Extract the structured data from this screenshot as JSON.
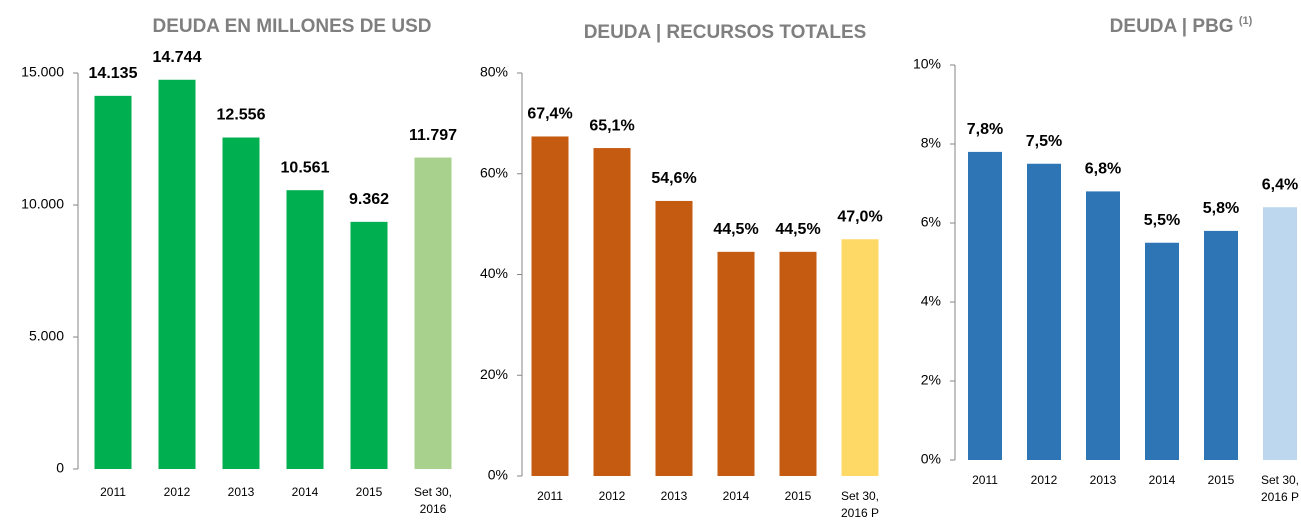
{
  "chart_data": [
    {
      "type": "bar",
      "title": "DEUDA EN MILLONES DE USD",
      "categories": [
        "2011",
        "2012",
        "2013",
        "2014",
        "2015",
        "Set 30, 2016"
      ],
      "values": [
        14135,
        14744,
        12556,
        10561,
        9362,
        11797
      ],
      "value_labels": [
        "14.135",
        "14.744",
        "12.556",
        "10.561",
        "9.362",
        "11.797"
      ],
      "colors": [
        "#00b050",
        "#00b050",
        "#00b050",
        "#00b050",
        "#00b050",
        "#a9d18e"
      ],
      "ylim": [
        0,
        15000
      ],
      "yticks": [
        0,
        {
          "value": 5000,
          "label": "5.000"
        },
        {
          "value": 10000,
          "label": "10.000"
        },
        {
          "value": 15000,
          "label": "15.000"
        }
      ]
    },
    {
      "type": "bar",
      "title": "DEUDA | RECURSOS TOTALES",
      "categories": [
        "2011",
        "2012",
        "2013",
        "2014",
        "2015",
        "Set 30, 2016 P"
      ],
      "values": [
        67.4,
        65.1,
        54.6,
        44.5,
        44.5,
        47.0
      ],
      "value_labels": [
        "67,4%",
        "65,1%",
        "54,6%",
        "44,5%",
        "44,5%",
        "47,0%"
      ],
      "colors": [
        "#c55a11",
        "#c55a11",
        "#c55a11",
        "#c55a11",
        "#c55a11",
        "#ffd966"
      ],
      "ylim": [
        0,
        80
      ],
      "yticks": [
        {
          "value": 0,
          "label": "0%"
        },
        {
          "value": 20,
          "label": "20%"
        },
        {
          "value": 40,
          "label": "40%"
        },
        {
          "value": 60,
          "label": "60%"
        },
        {
          "value": 80,
          "label": "80%"
        }
      ]
    },
    {
      "type": "bar",
      "title": "DEUDA | PBG",
      "title_note": "(1)",
      "categories": [
        "2011",
        "2012",
        "2013",
        "2014",
        "2015",
        "Set 30, 2016 P"
      ],
      "values": [
        7.8,
        7.5,
        6.8,
        5.5,
        5.8,
        6.4
      ],
      "value_labels": [
        "7,8%",
        "7,5%",
        "6,8%",
        "5,5%",
        "5,8%",
        "6,4%"
      ],
      "colors": [
        "#2e75b6",
        "#2e75b6",
        "#2e75b6",
        "#2e75b6",
        "#2e75b6",
        "#bdd7ee"
      ],
      "ylim": [
        0,
        10
      ],
      "yticks": [
        {
          "value": 0,
          "label": "0%"
        },
        {
          "value": 2,
          "label": "2%"
        },
        {
          "value": 4,
          "label": "4%"
        },
        {
          "value": 6,
          "label": "6%"
        },
        {
          "value": 8,
          "label": "8%"
        },
        {
          "value": 10,
          "label": "10%"
        }
      ]
    }
  ]
}
